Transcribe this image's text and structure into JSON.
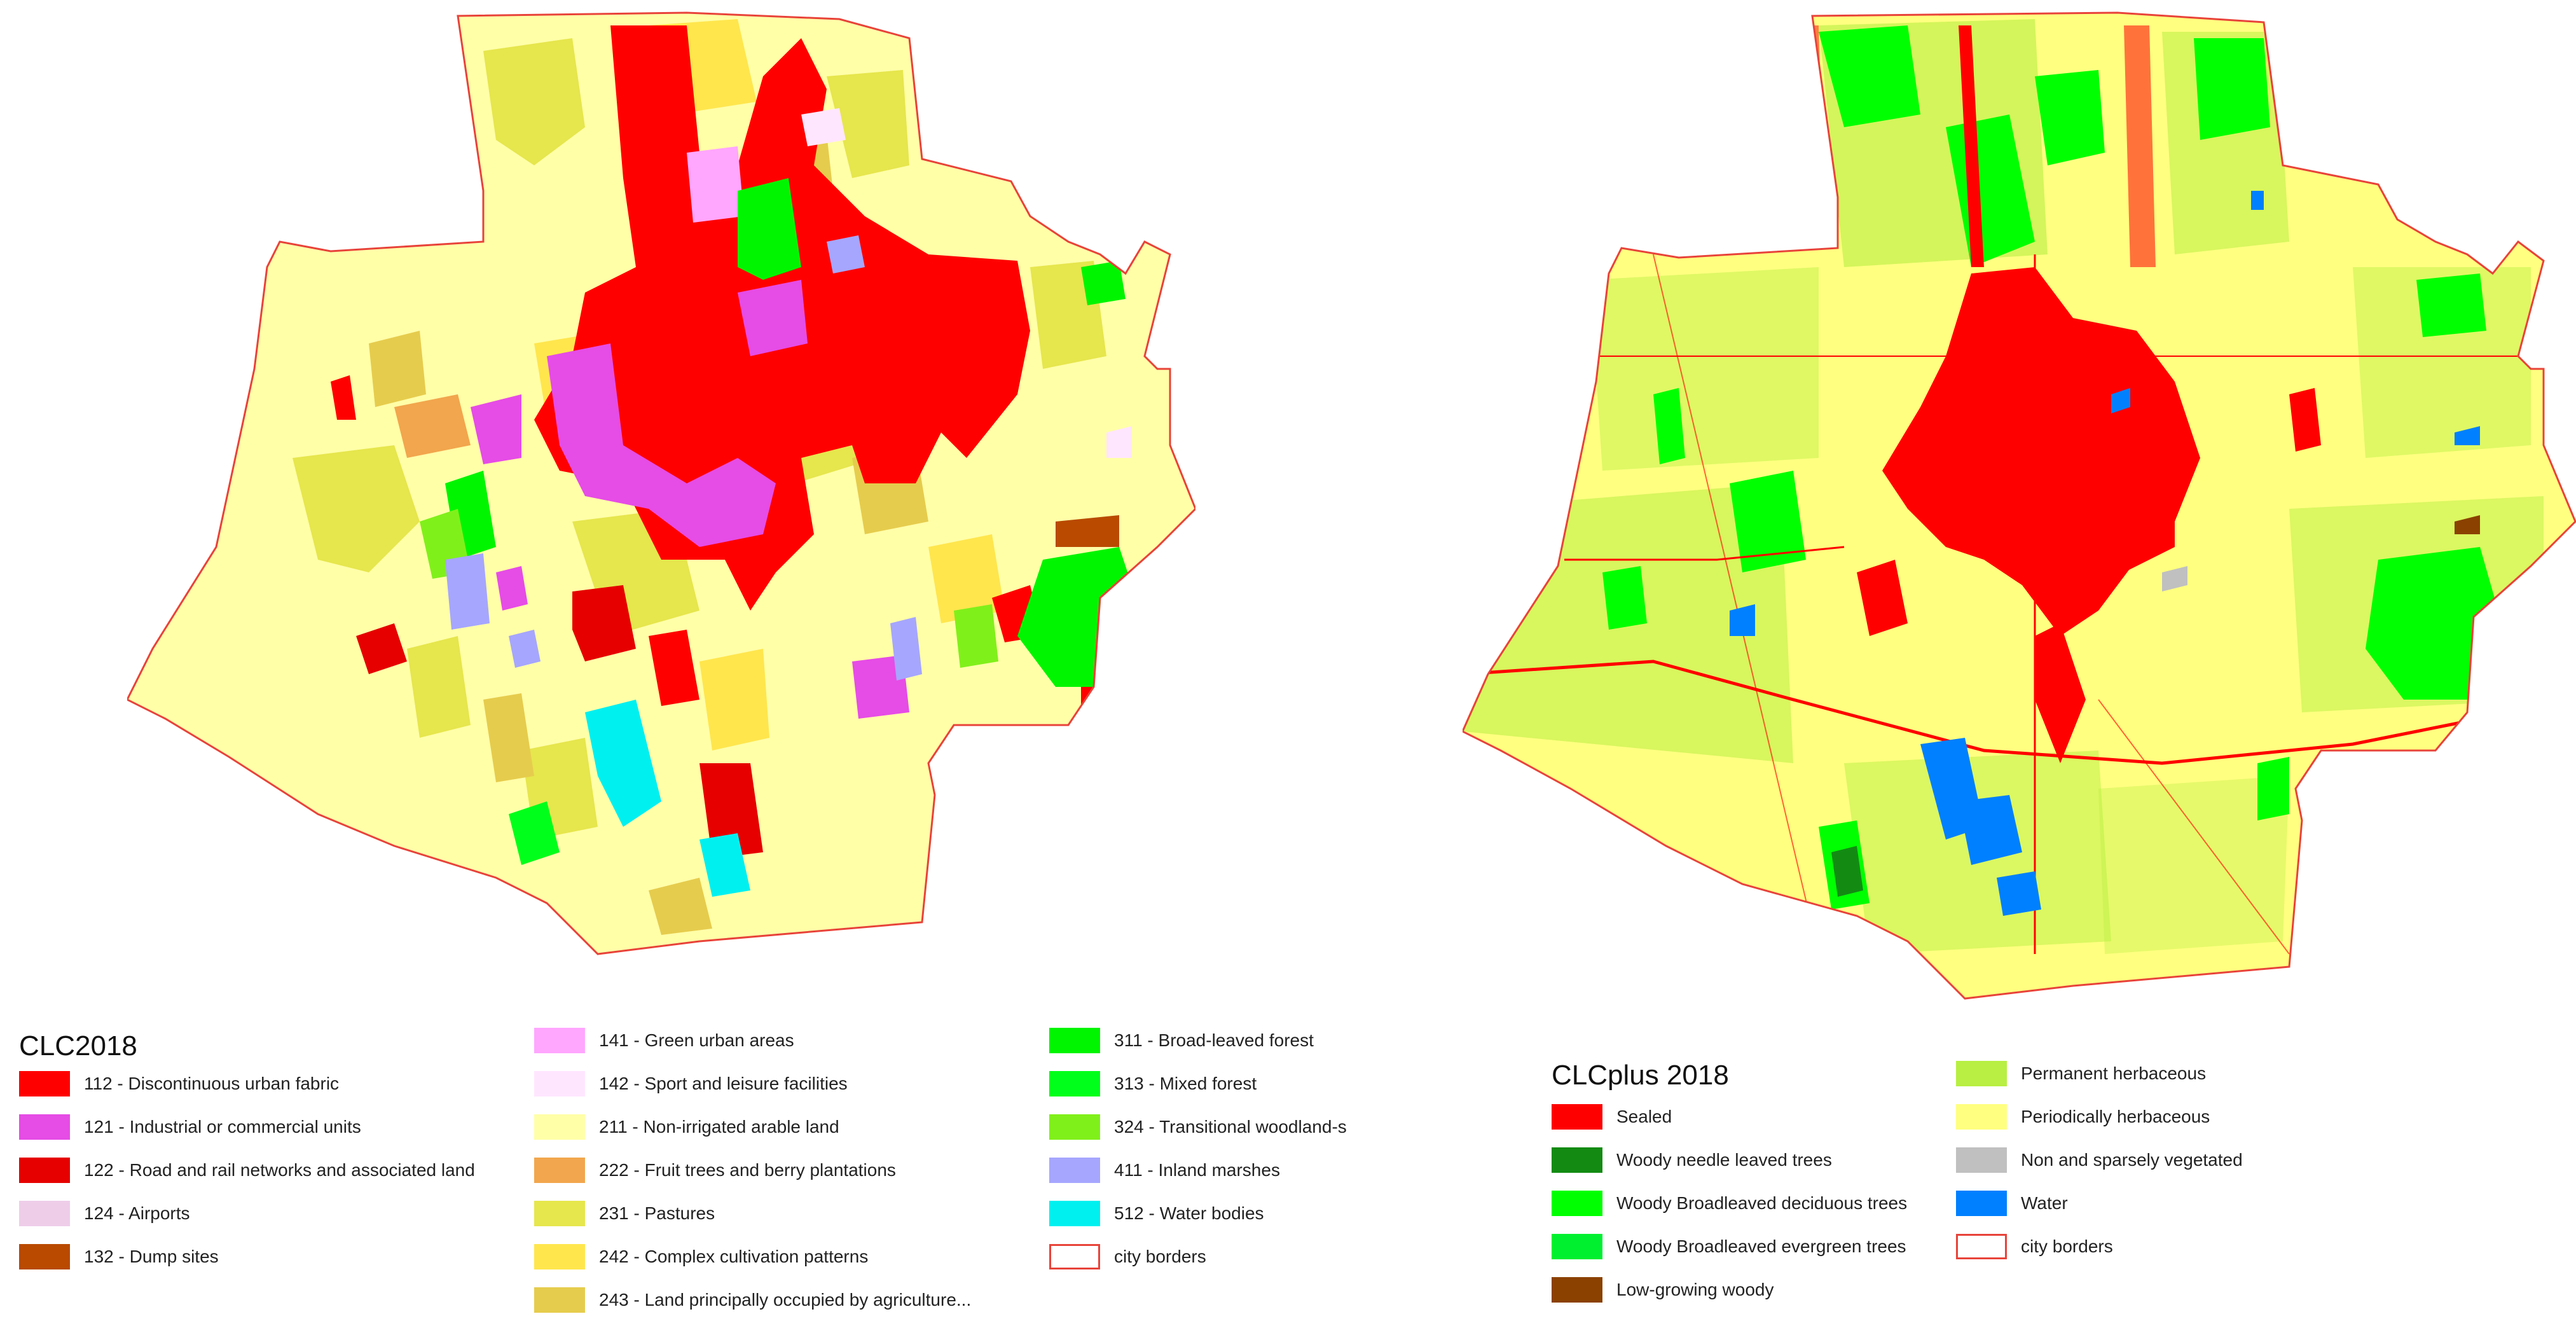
{
  "left_map": {
    "legend": {
      "title": "CLC2018",
      "columns": [
        [
          {
            "code_label": "112 - Discontinuous urban fabric",
            "color": "#ff0000"
          },
          {
            "code_label": "121 - Industrial or commercial units",
            "color": "#e64ce6"
          },
          {
            "code_label": "122 - Road and rail networks and associated land",
            "color": "#e60000"
          },
          {
            "code_label": "124 - Airports",
            "color": "#eecde9"
          },
          {
            "code_label": "132 - Dump sites",
            "color": "#b94a00"
          }
        ],
        [
          {
            "code_label": "141 - Green urban areas",
            "color": "#ffa6ff"
          },
          {
            "code_label": "142 - Sport and leisure facilities",
            "color": "#ffe6ff"
          },
          {
            "code_label": "211 - Non-irrigated arable land",
            "color": "#ffffa8"
          },
          {
            "code_label": "222 - Fruit trees and berry plantations",
            "color": "#f2a64d"
          },
          {
            "code_label": "231 - Pastures",
            "color": "#e6e64d"
          },
          {
            "code_label": "242 - Complex cultivation patterns",
            "color": "#ffe64d"
          },
          {
            "code_label": "243 - Land principally occupied by agriculture...",
            "color": "#e6cc4d"
          }
        ],
        [
          {
            "code_label": "311 - Broad-leaved forest",
            "color": "#00f500"
          },
          {
            "code_label": "313 - Mixed forest",
            "color": "#00ff1a"
          },
          {
            "code_label": "324 - Transitional woodland-s",
            "color": "#80f01a"
          },
          {
            "code_label": "411 - Inland marshes",
            "color": "#a6a6ff"
          },
          {
            "code_label": "512 - Water bodies",
            "color": "#00f0f0"
          },
          {
            "code_label": "city borders",
            "color": "#e8433a",
            "outline": true
          }
        ]
      ]
    }
  },
  "right_map": {
    "legend": {
      "title": "CLCplus 2018",
      "columns": [
        [
          {
            "label": "Sealed",
            "color": "#ff0000"
          },
          {
            "label": "Woody needle leaved trees",
            "color": "#138b13"
          },
          {
            "label": "Woody Broadleaved deciduous trees",
            "color": "#00ff00"
          },
          {
            "label": "Woody Broadleaved evergreen trees",
            "color": "#00f030"
          },
          {
            "label": "Low-growing woody",
            "color": "#8b4100"
          }
        ],
        [
          {
            "label": "Permanent herbaceous",
            "color": "#b8ef42"
          },
          {
            "label": "Periodically herbaceous",
            "color": "#ffff80"
          },
          {
            "label": "Non and sparsely vegetated",
            "color": "#c0c0c0"
          },
          {
            "label": "Water",
            "color": "#0080ff"
          },
          {
            "label": "city borders",
            "color": "#e8433a",
            "outline": true
          }
        ]
      ]
    }
  }
}
